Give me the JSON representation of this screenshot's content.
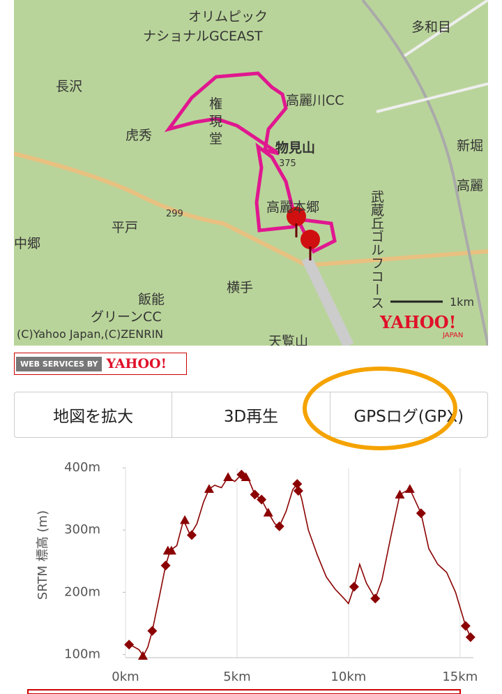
{
  "map": {
    "labels": {
      "olympic": "オリムピック",
      "gc_east": "ナショナルGCEAST",
      "tawame": "多和目",
      "nagasawa": "長沢",
      "komagawa_cc": "高麗川CC",
      "gon": "権",
      "gen": "現",
      "do": "堂",
      "kohide": "虎秀",
      "monomiyama": "物見山",
      "height": "375",
      "niihori": "新堀",
      "koma": "高麗",
      "musashigaoka": "武蔵丘ゴルフコース",
      "komahongo": "高麗本郷",
      "hirato": "平戸",
      "route": "299",
      "nakago": "中郷",
      "yokote": "横手",
      "hanno": "飯能",
      "green_cc": "グリーンCC",
      "tenranzan": "天覧山"
    },
    "scale": "1km",
    "copyright": "(C)Yahoo Japan,(C)ZENRIN",
    "logo": "YAHOO!",
    "logo_sub": "JAPAN"
  },
  "badge": {
    "prefix": "WEB SERVICES BY",
    "brand": "YAHOO!"
  },
  "buttons": [
    "地図を拡大",
    "3D再生",
    "GPSログ(GPX)"
  ],
  "chart_data": {
    "type": "line",
    "y_label": "SRTM 標高 (m)",
    "x": [
      0.2,
      0.6,
      0.8,
      1.0,
      1.2,
      1.5,
      1.8,
      2.0,
      2.3,
      2.6,
      2.9,
      3.2,
      3.5,
      3.75,
      4.0,
      4.3,
      4.6,
      4.9,
      5.2,
      5.5,
      5.8,
      6.1,
      6.4,
      6.7,
      6.9,
      7.2,
      7.5,
      7.7,
      7.9,
      8.2,
      8.6,
      9.0,
      9.4,
      9.8,
      10.0,
      10.25,
      10.5,
      10.8,
      11.2,
      11.5,
      11.9,
      12.3,
      12.75,
      13.25,
      13.6,
      14.0,
      14.4,
      14.8,
      15.25,
      15.47
    ],
    "series": [
      {
        "color": "#8b0000",
        "values": [
          116,
          108,
          98,
          112,
          138,
          190,
          243,
          267,
          275,
          316,
          292,
          310,
          345,
          366,
          372,
          368,
          385,
          378,
          389,
          383,
          357,
          349,
          328,
          310,
          306,
          330,
          365,
          374,
          350,
          300,
          260,
          225,
          205,
          190,
          182,
          209,
          245,
          215,
          190,
          220,
          290,
          357,
          366,
          327,
          270,
          245,
          232,
          200,
          146,
          128
        ]
      },
      {
        "color": "#8b0000",
        "line": false,
        "x": [
          0.16,
          0.78,
          1.2,
          1.8,
          1.9,
          2.06,
          2.66,
          2.97,
          3.75,
          4.6,
          5.2,
          5.4,
          5.8,
          6.1,
          6.4,
          6.9,
          7.7,
          7.75,
          10.25,
          11.2,
          12.3,
          12.75,
          13.25,
          15.25,
          15.47
        ],
        "values": [
          116,
          98,
          138,
          243,
          267,
          267,
          316,
          292,
          366,
          385,
          389,
          385,
          357,
          349,
          328,
          306,
          374,
          363,
          209,
          190,
          357,
          366,
          327,
          146,
          128
        ],
        "marker_shapes": [
          "diamond",
          "triangle",
          "diamond",
          "diamond",
          "triangle",
          "triangle",
          "triangle",
          "diamond",
          "triangle",
          "triangle",
          "diamond",
          "triangle",
          "diamond",
          "diamond",
          "triangle",
          "diamond",
          "diamond",
          "diamond",
          "diamond",
          "diamond",
          "triangle",
          "triangle",
          "diamond",
          "diamond",
          "diamond"
        ]
      }
    ],
    "xlim": [
      0,
      15.6
    ],
    "ylim": [
      95,
      400
    ],
    "xticks": [
      {
        "value": 0,
        "label": "0km"
      },
      {
        "value": 5,
        "label": "5km"
      },
      {
        "value": 10,
        "label": "10km"
      },
      {
        "value": 15,
        "label": "15km"
      }
    ],
    "yticks": [
      {
        "value": 100,
        "label": "100m"
      },
      {
        "value": 200,
        "label": "200m"
      },
      {
        "value": 300,
        "label": "300m"
      },
      {
        "value": 400,
        "label": "400m"
      }
    ],
    "grid": "x"
  }
}
